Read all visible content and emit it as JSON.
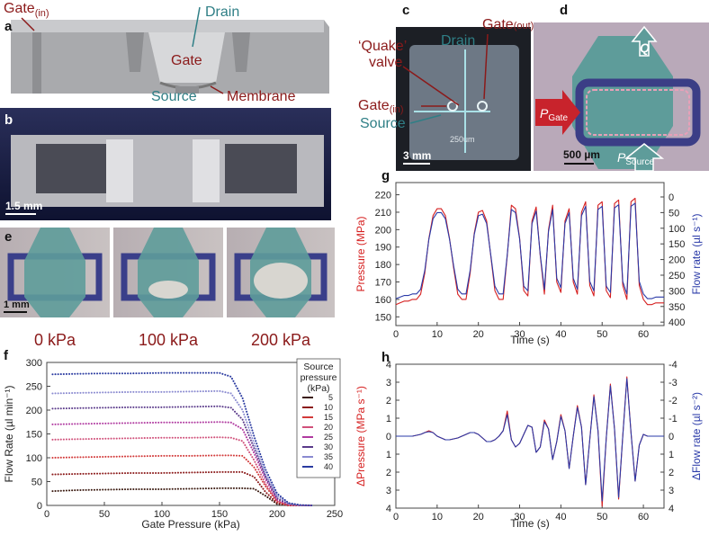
{
  "panels": {
    "a": {
      "letter": "a",
      "gate": "Gate",
      "gate_sub": "(in)",
      "drain": "Drain",
      "gate_center": "Gate",
      "source": "Source",
      "membrane": "Membrane"
    },
    "b": {
      "letter": "b",
      "scale": "1.5 mm"
    },
    "c": {
      "letter": "c",
      "quake": "‘Quake’",
      "valve": "valve",
      "drain": "Drain",
      "gate_out": "Gate",
      "gate_out_sub": "(out)",
      "gate_in": "Gate",
      "gate_in_sub": "(in)",
      "source": "Source",
      "chip_text": "250um",
      "scale": "3 mm"
    },
    "d": {
      "letter": "d",
      "flow": "Q",
      "p_gate": "P",
      "p_gate_sub": "Gate",
      "p_source": "P",
      "p_source_sub": "Source",
      "scale": "500 µm"
    },
    "e": {
      "letter": "e",
      "scale": "1 mm",
      "pressures": [
        "0 kPa",
        "100 kPa",
        "200 kPa"
      ]
    }
  },
  "chart_data": [
    {
      "type": "line",
      "panel": "f",
      "linestyle": "dotted",
      "xlabel": "Gate Pressure (kPa)",
      "ylabel": "Flow Rate (µl min⁻¹)",
      "x": [
        5,
        25,
        50,
        75,
        100,
        125,
        150,
        160,
        170,
        180,
        190,
        200,
        210,
        220,
        230
      ],
      "xlim": [
        0,
        250
      ],
      "xticks": [
        0,
        50,
        100,
        150,
        200,
        250
      ],
      "ylim": [
        0,
        300
      ],
      "yticks": [
        0,
        50,
        100,
        150,
        200,
        250,
        300
      ],
      "legend": "upper right",
      "legend_title": [
        "Source",
        "pressure",
        "(kPa)"
      ],
      "series": [
        {
          "name": "5",
          "color": "#3b1a10",
          "values": [
            30,
            32,
            33,
            34,
            34,
            35,
            36,
            36,
            36,
            35,
            20,
            3,
            0,
            0,
            0
          ]
        },
        {
          "name": "10",
          "color": "#8b1a1a",
          "values": [
            65,
            66,
            67,
            68,
            68,
            69,
            70,
            70,
            70,
            60,
            28,
            5,
            0,
            0,
            0
          ]
        },
        {
          "name": "15",
          "color": "#d23a3a",
          "values": [
            100,
            101,
            102,
            103,
            104,
            104,
            105,
            105,
            104,
            80,
            40,
            8,
            0,
            0,
            0
          ]
        },
        {
          "name": "20",
          "color": "#d0507a",
          "values": [
            138,
            139,
            140,
            141,
            142,
            142,
            143,
            142,
            135,
            95,
            45,
            10,
            1,
            0,
            0
          ]
        },
        {
          "name": "25",
          "color": "#b03aa0",
          "values": [
            170,
            171,
            172,
            173,
            174,
            174,
            175,
            174,
            160,
            110,
            55,
            12,
            2,
            0,
            0
          ]
        },
        {
          "name": "30",
          "color": "#5a3a8a",
          "values": [
            203,
            204,
            205,
            206,
            206,
            207,
            208,
            205,
            180,
            120,
            60,
            15,
            3,
            0,
            0
          ]
        },
        {
          "name": "35",
          "color": "#8a8ad0",
          "values": [
            235,
            236,
            237,
            238,
            238,
            239,
            240,
            235,
            200,
            130,
            65,
            20,
            4,
            0,
            0
          ]
        },
        {
          "name": "40",
          "color": "#2a3aa0",
          "values": [
            275,
            276,
            277,
            277,
            278,
            278,
            278,
            270,
            225,
            145,
            75,
            25,
            5,
            1,
            0
          ]
        }
      ]
    },
    {
      "type": "line",
      "panel": "g",
      "xlabel": "Time (s)",
      "ylabel": "Pressure (MPa)",
      "y2label": "Flow rate (µl s⁻¹)",
      "x": [
        0,
        1,
        2,
        3,
        4,
        5,
        6,
        7,
        8,
        9,
        10,
        11,
        12,
        13,
        14,
        15,
        16,
        17,
        18,
        19,
        20,
        21,
        22,
        23,
        24,
        25,
        26,
        27,
        28,
        29,
        30,
        31,
        32,
        33,
        34,
        35,
        36,
        37,
        38,
        39,
        40,
        41,
        42,
        43,
        44,
        45,
        46,
        47,
        48,
        49,
        50,
        51,
        52,
        53,
        54,
        55,
        56,
        57,
        58,
        59,
        60,
        61,
        62,
        63,
        64,
        65
      ],
      "xlim": [
        0,
        65
      ],
      "xticks": [
        0,
        10,
        20,
        30,
        40,
        50,
        60
      ],
      "ylim": [
        145,
        227
      ],
      "yticks": [
        150,
        160,
        170,
        180,
        190,
        200,
        210,
        220
      ],
      "y2lim": [
        411,
        -46
      ],
      "y2ticks": [
        0,
        50,
        100,
        150,
        200,
        250,
        300,
        350,
        400
      ],
      "series": [
        {
          "color": "#d62020",
          "values": [
            157,
            158,
            159,
            159,
            160,
            160,
            163,
            175,
            195,
            208,
            212,
            212,
            208,
            195,
            178,
            163,
            160,
            160,
            175,
            198,
            210,
            211,
            205,
            185,
            165,
            160,
            160,
            185,
            214,
            212,
            195,
            165,
            162,
            205,
            213,
            185,
            163,
            200,
            214,
            170,
            164,
            205,
            212,
            170,
            163,
            210,
            216,
            168,
            162,
            214,
            216,
            165,
            161,
            215,
            217,
            168,
            160,
            216,
            218,
            168,
            160,
            157,
            157,
            158,
            158,
            158
          ]
        },
        {
          "color": "#2a3aa8",
          "axis": "y2",
          "values": [
            325,
            320,
            315,
            315,
            310,
            310,
            295,
            235,
            135,
            70,
            50,
            50,
            70,
            135,
            220,
            295,
            310,
            310,
            235,
            120,
            60,
            55,
            85,
            185,
            285,
            310,
            310,
            185,
            40,
            50,
            135,
            285,
            300,
            85,
            45,
            185,
            295,
            110,
            40,
            260,
            290,
            85,
            50,
            260,
            295,
            60,
            30,
            270,
            300,
            40,
            30,
            285,
            305,
            35,
            25,
            270,
            310,
            30,
            20,
            270,
            310,
            325,
            325,
            320,
            320,
            320
          ]
        }
      ]
    },
    {
      "type": "line",
      "panel": "h",
      "xlabel": "Time (s)",
      "ylabel": "ΔPressure (MPa s⁻¹)",
      "y2label": "ΔFlow rate (µl s⁻²)",
      "x": [
        0,
        1,
        2,
        3,
        4,
        5,
        6,
        7,
        8,
        9,
        10,
        11,
        12,
        13,
        14,
        15,
        16,
        17,
        18,
        19,
        20,
        21,
        22,
        23,
        24,
        25,
        26,
        27,
        28,
        29,
        30,
        31,
        32,
        33,
        34,
        35,
        36,
        37,
        38,
        39,
        40,
        41,
        42,
        43,
        44,
        45,
        46,
        47,
        48,
        49,
        50,
        51,
        52,
        53,
        54,
        55,
        56,
        57,
        58,
        59,
        60,
        61,
        62,
        63,
        64,
        65
      ],
      "xlim": [
        0,
        65
      ],
      "xticks": [
        0,
        10,
        20,
        30,
        40,
        50,
        60
      ],
      "ylim": [
        -4,
        4
      ],
      "yticks": [
        {
          "value": -4,
          "label": "4"
        },
        {
          "value": -3,
          "label": "3"
        },
        {
          "value": -2,
          "label": "2"
        },
        {
          "value": -1,
          "label": "1"
        },
        0,
        1,
        2,
        3,
        4
      ],
      "y2lim": [
        4,
        -4
      ],
      "y2ticks": [
        -4,
        -3,
        -2,
        -1,
        0,
        1,
        2,
        3,
        4
      ],
      "series": [
        {
          "color": "#d62020",
          "values": [
            0,
            0,
            0,
            0,
            0,
            0.05,
            0.1,
            0.2,
            0.3,
            0.2,
            0,
            -0.1,
            -0.2,
            -0.2,
            -0.15,
            -0.1,
            0,
            0.1,
            0.2,
            0.2,
            0.1,
            -0.1,
            -0.3,
            -0.3,
            -0.2,
            0,
            0.3,
            1.4,
            -0.2,
            -0.6,
            -0.4,
            0.1,
            0.6,
            0.5,
            -0.9,
            -0.6,
            0.9,
            0.4,
            -1.3,
            -0.3,
            1.2,
            0.3,
            -1.8,
            0,
            1.7,
            0.5,
            -2.7,
            -0.2,
            2.3,
            0.3,
            -3.9,
            -0.1,
            2.9,
            0.4,
            -3.5,
            0,
            3.3,
            0.2,
            -2.5,
            -0.5,
            0.1,
            0,
            0,
            0,
            0,
            0
          ]
        },
        {
          "color": "#2a3aa8",
          "axis": "y2",
          "values": [
            0,
            0,
            0,
            0,
            0,
            -0.05,
            -0.1,
            -0.2,
            -0.25,
            -0.2,
            0,
            0.1,
            0.2,
            0.2,
            0.15,
            0.1,
            0,
            -0.1,
            -0.2,
            -0.2,
            -0.1,
            0.1,
            0.3,
            0.3,
            0.2,
            0,
            -0.3,
            -1.2,
            0.2,
            0.6,
            0.4,
            -0.1,
            -0.6,
            -0.5,
            0.9,
            0.6,
            -0.8,
            -0.4,
            1.3,
            0.3,
            -1.1,
            -0.3,
            1.8,
            0,
            -1.6,
            -0.5,
            2.7,
            0.2,
            -2.2,
            -0.3,
            3.6,
            0.1,
            -2.8,
            -0.4,
            3.4,
            0,
            -3.2,
            -0.2,
            2.5,
            0.5,
            -0.1,
            0,
            0,
            0,
            0,
            0
          ]
        }
      ]
    }
  ]
}
